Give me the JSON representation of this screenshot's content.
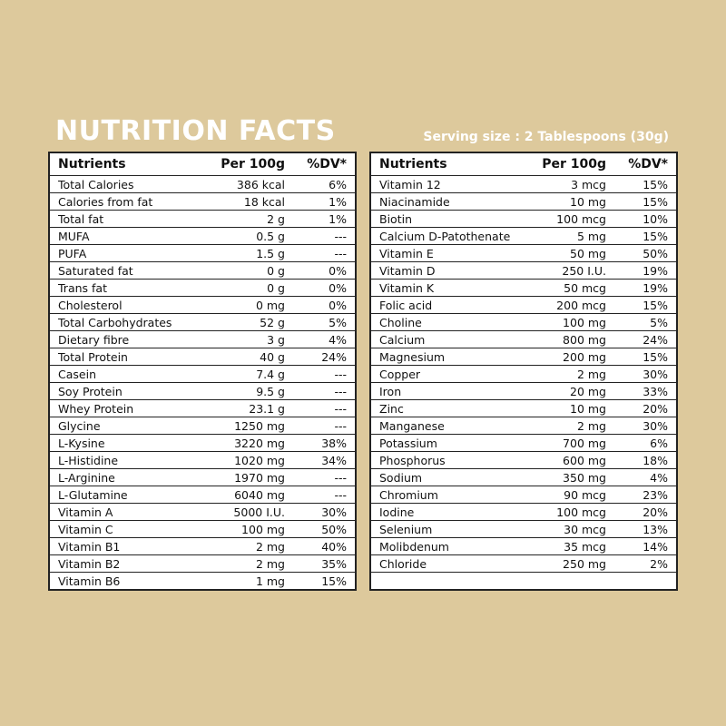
{
  "title": "NUTRITION FACTS",
  "serving_size": "Serving size : 2 Tablespoons (30g)",
  "headers": [
    "Nutrients",
    "Per 100g",
    "%DV*"
  ],
  "left_table": [
    [
      "Total Calories",
      "386 kcal",
      "6%"
    ],
    [
      "Calories from fat",
      "18 kcal",
      "1%"
    ],
    [
      "Total fat",
      "2 g",
      "1%"
    ],
    [
      "MUFA",
      "0.5 g",
      "---"
    ],
    [
      "PUFA",
      "1.5 g",
      "---"
    ],
    [
      "Saturated fat",
      "0 g",
      "0%"
    ],
    [
      "Trans fat",
      "0 g",
      "0%"
    ],
    [
      "Cholesterol",
      "0 mg",
      "0%"
    ],
    [
      "Total Carbohydrates",
      "52 g",
      "5%"
    ],
    [
      "Dietary fibre",
      "3 g",
      "4%"
    ],
    [
      "Total Protein",
      "40 g",
      "24%"
    ],
    [
      "Casein",
      "7.4 g",
      "---"
    ],
    [
      "Soy Protein",
      "9.5 g",
      "---"
    ],
    [
      "Whey Protein",
      "23.1 g",
      "---"
    ],
    [
      "Glycine",
      "1250 mg",
      "---"
    ],
    [
      "L-Kysine",
      "3220 mg",
      "38%"
    ],
    [
      "L-Histidine",
      "1020 mg",
      "34%"
    ],
    [
      "L-Arginine",
      "1970 mg",
      "---"
    ],
    [
      "L-Glutamine",
      "6040 mg",
      "---"
    ],
    [
      "Vitamin A",
      "5000 I.U.",
      "30%"
    ],
    [
      "Vitamin C",
      "100 mg",
      "50%"
    ],
    [
      "Vitamin B1",
      "2 mg",
      "40%"
    ],
    [
      "Vitamin B2",
      "2 mg",
      "35%"
    ],
    [
      "Vitamin B6",
      "1 mg",
      "15%"
    ]
  ],
  "right_table": [
    [
      "Vitamin 12",
      "3 mcg",
      "15%"
    ],
    [
      "Niacinamide",
      "10 mg",
      "15%"
    ],
    [
      "Biotin",
      "100 mcg",
      "10%"
    ],
    [
      "Calcium D-Patothenate",
      "5 mg",
      "15%"
    ],
    [
      "Vitamin E",
      "50 mg",
      "50%"
    ],
    [
      "Vitamin D",
      "250 I.U.",
      "19%"
    ],
    [
      "Vitamin K",
      "50 mcg",
      "19%"
    ],
    [
      "Folic acid",
      "200 mcg",
      "15%"
    ],
    [
      "Choline",
      "100 mg",
      "5%"
    ],
    [
      "Calcium",
      "800 mg",
      "24%"
    ],
    [
      "Magnesium",
      "200 mg",
      "15%"
    ],
    [
      "Copper",
      "2 mg",
      "30%"
    ],
    [
      "Iron",
      "20 mg",
      "33%"
    ],
    [
      "Zinc",
      "10 mg",
      "20%"
    ],
    [
      "Manganese",
      "2 mg",
      "30%"
    ],
    [
      "Potassium",
      "700 mg",
      "6%"
    ],
    [
      "Phosphorus",
      "600 mg",
      "18%"
    ],
    [
      "Sodium",
      "350 mg",
      "4%"
    ],
    [
      "Chromium",
      "90 mcg",
      "23%"
    ],
    [
      "Iodine",
      "100 mcg",
      "20%"
    ],
    [
      "Selenium",
      "30 mcg",
      "13%"
    ],
    [
      "Molibdenum",
      "35 mcg",
      "14%"
    ],
    [
      "Chloride",
      "250 mg",
      "2%"
    ],
    [
      "",
      "",
      ""
    ]
  ],
  "colors": {
    "background": "#ddc99c",
    "title": "#ffffff",
    "table_border": "#222222"
  }
}
